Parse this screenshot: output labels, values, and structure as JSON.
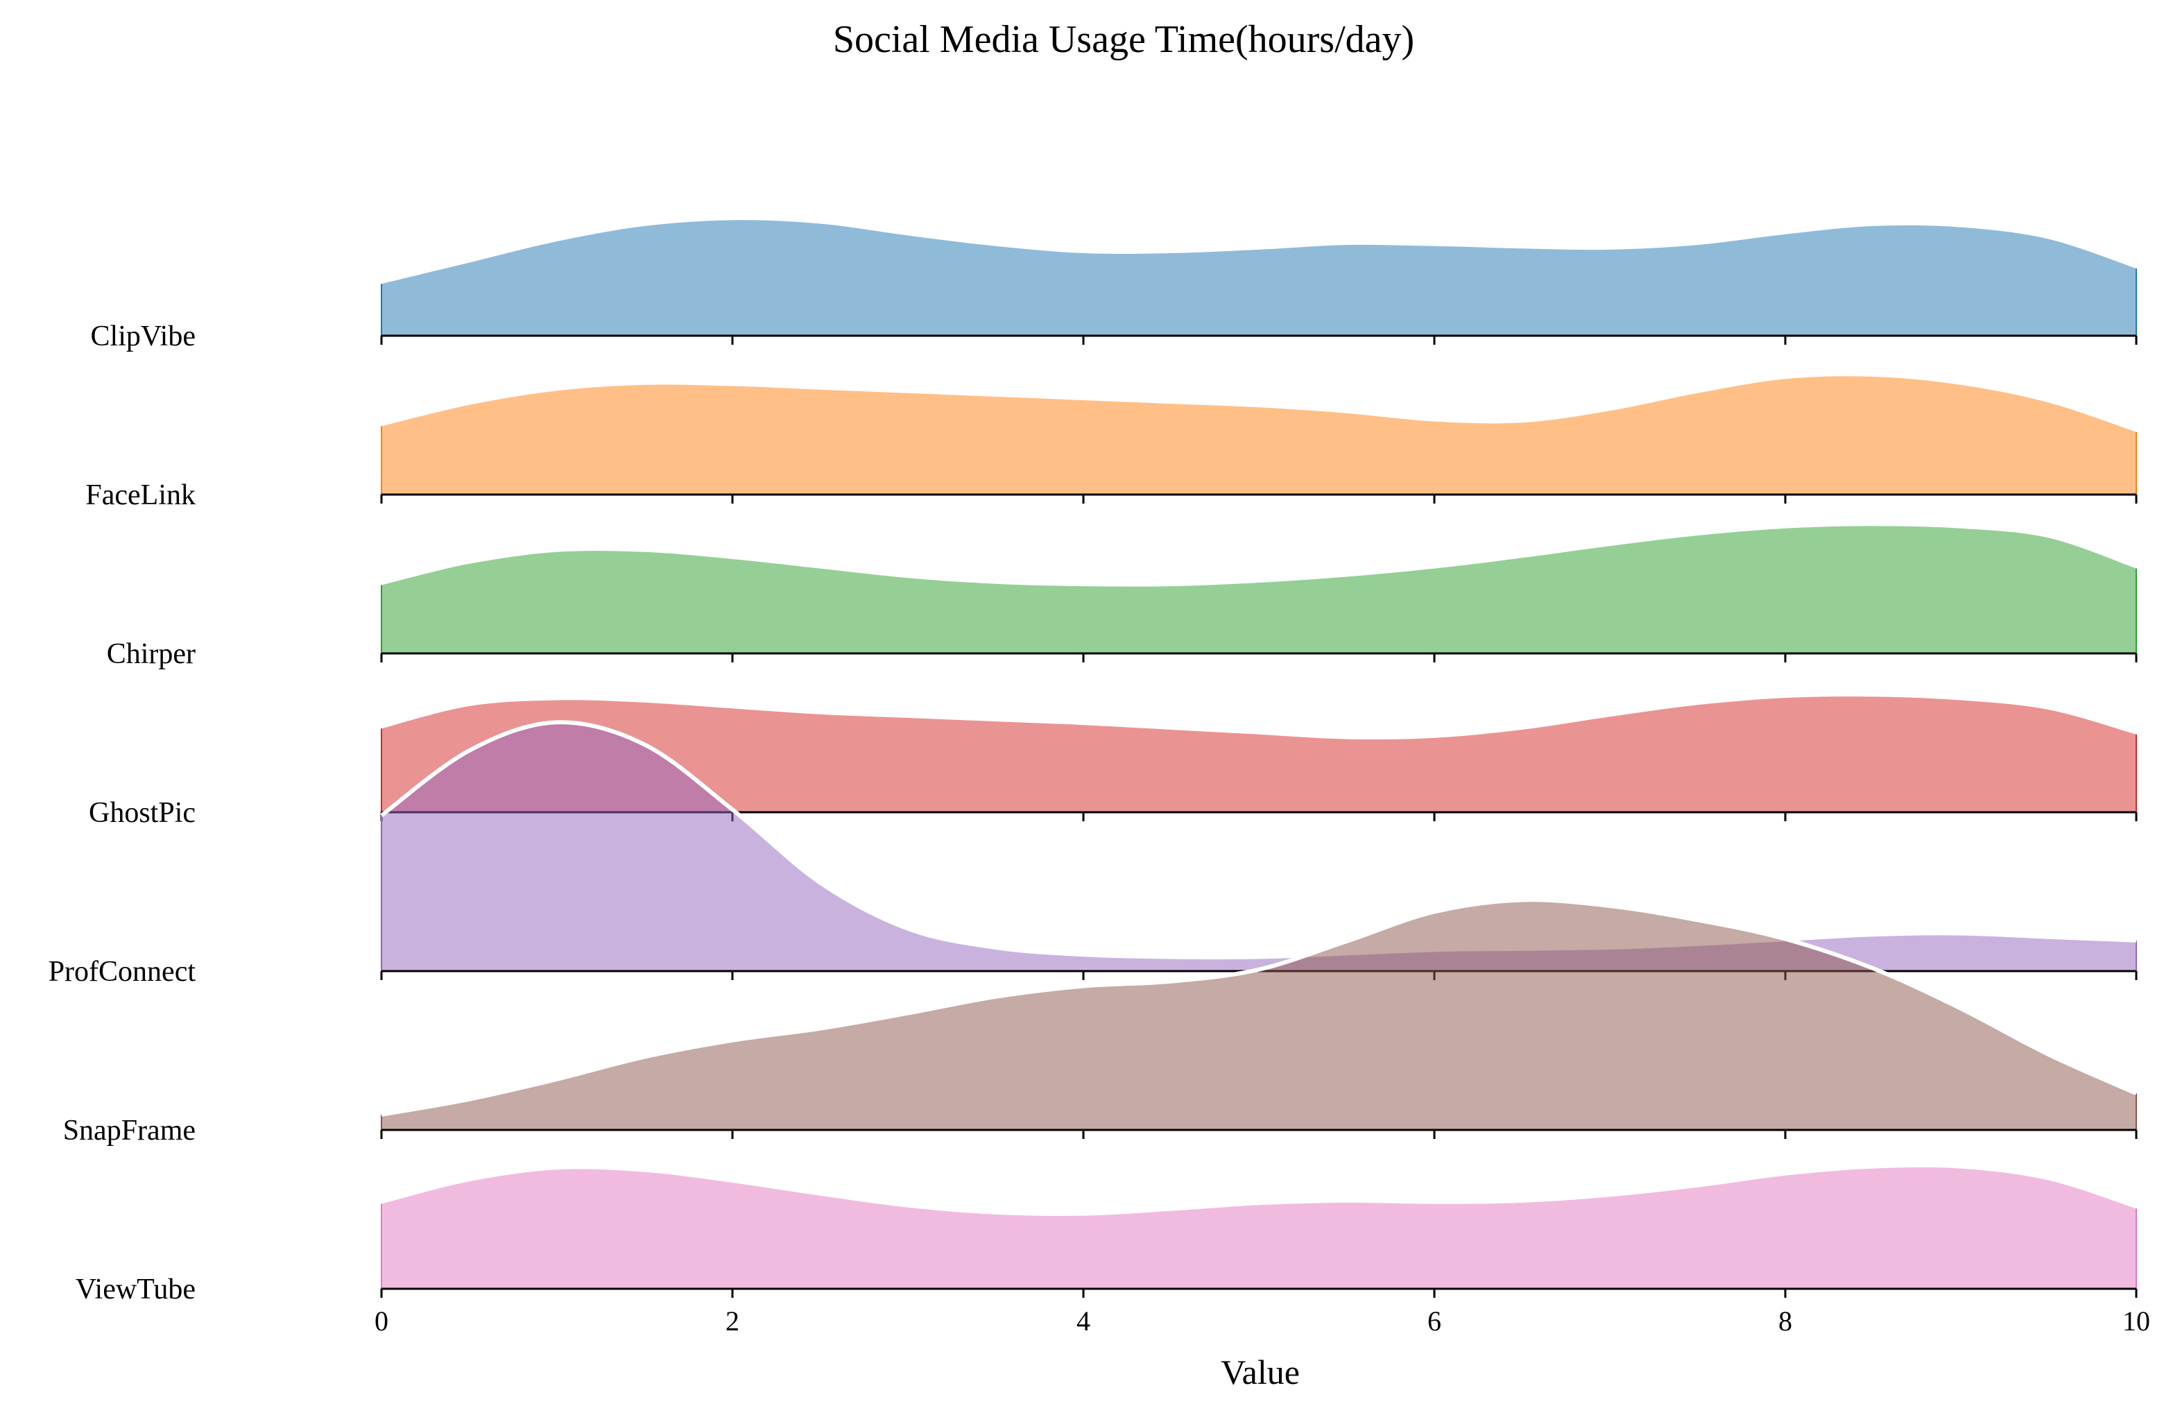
{
  "chart_data": {
    "type": "area",
    "title": "Social Media Usage Time(hours/day)",
    "xlabel": "Value",
    "ylabel": "",
    "xlim": [
      0,
      10
    ],
    "xticks": [
      0,
      2,
      4,
      6,
      8,
      10
    ],
    "grid": false,
    "legend": "none",
    "x": [
      0,
      0.5,
      1,
      1.5,
      2,
      2.5,
      3,
      3.5,
      4,
      4.5,
      5,
      5.5,
      6,
      6.5,
      7,
      7.5,
      8,
      8.5,
      9,
      9.5,
      10
    ],
    "series": [
      {
        "name": "ClipVibe",
        "color": "#1f77b4",
        "values": [
          0.44,
          0.62,
          0.8,
          0.93,
          0.98,
          0.95,
          0.85,
          0.76,
          0.7,
          0.7,
          0.73,
          0.77,
          0.76,
          0.74,
          0.73,
          0.77,
          0.86,
          0.93,
          0.92,
          0.82,
          0.57
        ]
      },
      {
        "name": "FaceLink",
        "color": "#ff7f0e",
        "values": [
          0.58,
          0.76,
          0.88,
          0.93,
          0.92,
          0.89,
          0.86,
          0.83,
          0.8,
          0.77,
          0.74,
          0.69,
          0.62,
          0.61,
          0.71,
          0.86,
          0.98,
          1.0,
          0.93,
          0.78,
          0.53
        ]
      },
      {
        "name": "Chirper",
        "color": "#2ca02c",
        "values": [
          0.58,
          0.76,
          0.86,
          0.86,
          0.8,
          0.72,
          0.64,
          0.59,
          0.57,
          0.57,
          0.6,
          0.65,
          0.72,
          0.81,
          0.91,
          1.0,
          1.06,
          1.08,
          1.06,
          0.98,
          0.72
        ]
      },
      {
        "name": "GhostPic",
        "color": "#d62728",
        "values": [
          0.71,
          0.9,
          0.95,
          0.93,
          0.88,
          0.83,
          0.8,
          0.77,
          0.74,
          0.7,
          0.66,
          0.62,
          0.63,
          0.7,
          0.81,
          0.91,
          0.97,
          0.98,
          0.95,
          0.87,
          0.66
        ]
      },
      {
        "name": "ProfConnect",
        "color": "#9467bd",
        "values": [
          1.32,
          1.87,
          2.11,
          1.92,
          1.37,
          0.75,
          0.36,
          0.2,
          0.14,
          0.12,
          0.12,
          0.15,
          0.18,
          0.19,
          0.2,
          0.23,
          0.27,
          0.31,
          0.32,
          0.29,
          0.26
        ]
      },
      {
        "name": "SnapFrame",
        "color": "#8c564b",
        "values": [
          0.13,
          0.26,
          0.43,
          0.62,
          0.76,
          0.86,
          0.99,
          1.13,
          1.22,
          1.26,
          1.36,
          1.6,
          1.85,
          1.95,
          1.9,
          1.78,
          1.62,
          1.37,
          1.03,
          0.64,
          0.31
        ]
      },
      {
        "name": "ViewTube",
        "color": "#e377c2",
        "values": [
          0.72,
          0.91,
          1.01,
          0.99,
          0.9,
          0.79,
          0.69,
          0.63,
          0.62,
          0.66,
          0.71,
          0.73,
          0.72,
          0.73,
          0.78,
          0.86,
          0.96,
          1.02,
          1.02,
          0.92,
          0.68
        ]
      }
    ]
  }
}
